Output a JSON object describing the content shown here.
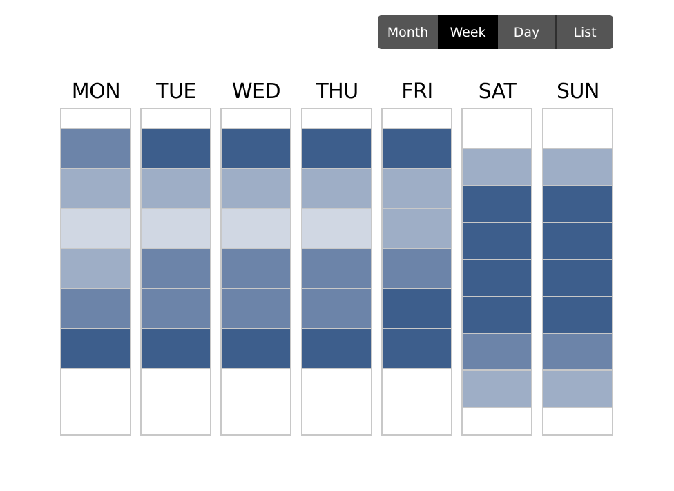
{
  "view_switcher": {
    "options": [
      {
        "label": "Month",
        "active": false
      },
      {
        "label": "Week",
        "active": true
      },
      {
        "label": "Day",
        "active": false
      },
      {
        "label": "List",
        "active": false
      }
    ]
  },
  "colors": {
    "level_1": "#d0d7e3",
    "level_2": "#9eaec6",
    "level_3": "#6c84a9",
    "level_4": "#3d5e8c",
    "border": "#c8c8c8",
    "active_tab": "#000000",
    "inactive_tab": "#555555"
  },
  "week": {
    "days": [
      {
        "label": "MON",
        "slot_levels": [
          3,
          2,
          1,
          2,
          3,
          4
        ]
      },
      {
        "label": "TUE",
        "slot_levels": [
          4,
          2,
          1,
          3,
          3,
          4
        ]
      },
      {
        "label": "WED",
        "slot_levels": [
          4,
          2,
          1,
          3,
          3,
          4
        ]
      },
      {
        "label": "THU",
        "slot_levels": [
          4,
          2,
          1,
          3,
          3,
          4
        ]
      },
      {
        "label": "FRI",
        "slot_levels": [
          4,
          2,
          2,
          3,
          4,
          4
        ]
      },
      {
        "label": "SAT",
        "slot_levels": [
          2,
          4,
          4,
          4,
          4,
          3,
          2
        ]
      },
      {
        "label": "SUN",
        "slot_levels": [
          2,
          4,
          4,
          4,
          4,
          3,
          2
        ]
      }
    ]
  }
}
